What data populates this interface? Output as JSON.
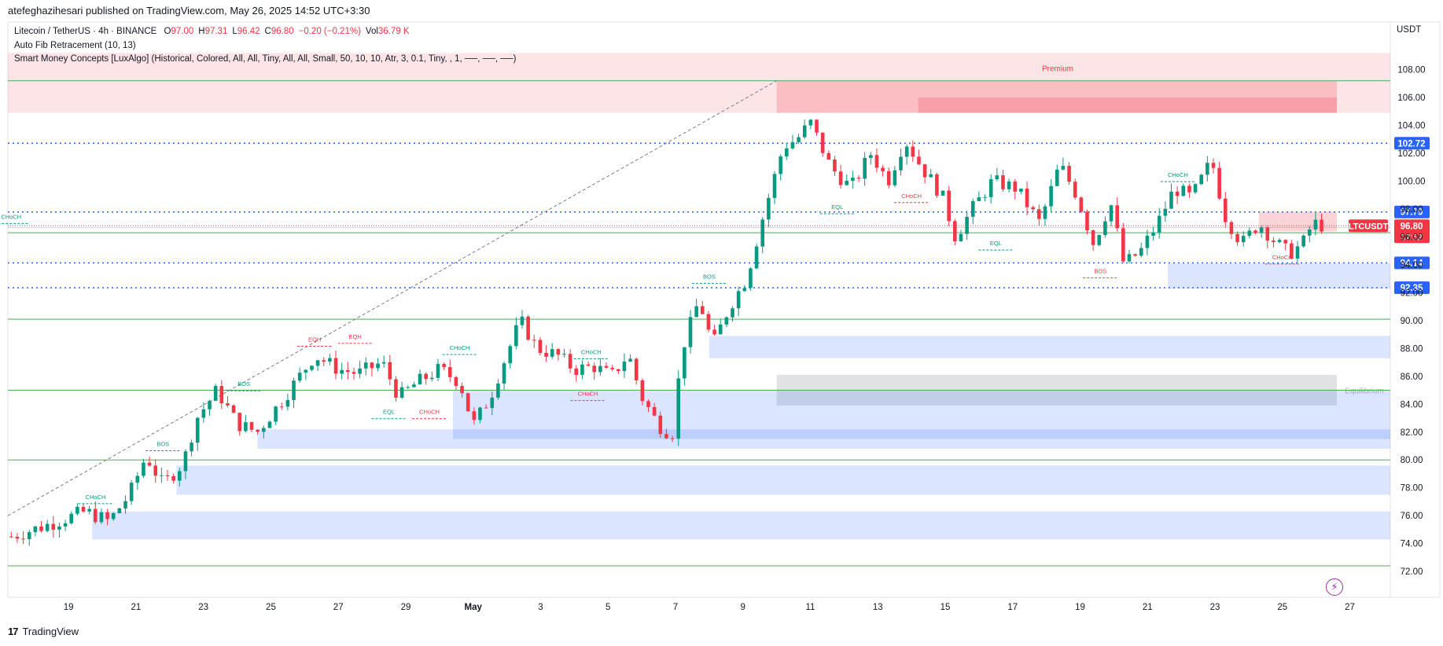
{
  "header": {
    "published_by": "atefeghazihesari published on TradingView.com, May 26, 2025 14:52 UTC+3:30"
  },
  "legend": {
    "symbol": "Litecoin / TetherUS · 4h · BINANCE",
    "ohlc": [
      {
        "k": "O",
        "v": "97.00"
      },
      {
        "k": "H",
        "v": "97.31"
      },
      {
        "k": "L",
        "v": "96.42"
      },
      {
        "k": "C",
        "v": "96.80"
      },
      {
        "k": "",
        "v": "−0.20 (−0.21%)"
      },
      {
        "k": "Vol",
        "v": "36.79 K"
      }
    ],
    "indicators": [
      "Auto Fib Retracement (10, 13)",
      "Smart Money Concepts [LuxAlgo] (Historical, Colored, All, All, Tiny, All, All, Small, 50, 10, 10, Atr, 3, 0.1, Tiny, , 1, ──, ──, ──)"
    ]
  },
  "axis": {
    "currency": "USDT"
  },
  "colors": {
    "up": "#089981",
    "down": "#f23645",
    "demand": "#2962ff",
    "supply": "#f23645",
    "level": "#2962ff",
    "fib": "#4caf50"
  },
  "footer": {
    "brand": "TradingView",
    "logo_icon": "tradingview-logo-icon"
  },
  "chart_data": {
    "type": "candlestick",
    "symbol": "LTCUSDT",
    "interval": "4h",
    "ylim": [
      71.5,
      109.5
    ],
    "y_ticks": [
      72,
      74,
      76,
      78,
      80,
      82,
      84,
      86,
      88,
      90,
      92,
      94,
      96,
      98,
      100,
      102,
      104,
      106,
      108
    ],
    "y_tick_labels": [
      "72.00",
      "74.00",
      "76.00",
      "78.00",
      "80.00",
      "82.00",
      "84.00",
      "86.00",
      "88.00",
      "90.00",
      "92.00",
      "94.00",
      "96.00",
      "98.00",
      "100.00",
      "102.00",
      "104.00",
      "106.00",
      "108.00"
    ],
    "x_ticks": [
      {
        "d": 19,
        "label": "19"
      },
      {
        "d": 21,
        "label": "21"
      },
      {
        "d": 23,
        "label": "23"
      },
      {
        "d": 25,
        "label": "25"
      },
      {
        "d": 27,
        "label": "27"
      },
      {
        "d": 29,
        "label": "29"
      },
      {
        "d": 31,
        "label": "May"
      },
      {
        "d": 33,
        "label": "3"
      },
      {
        "d": 35,
        "label": "5"
      },
      {
        "d": 37,
        "label": "7"
      },
      {
        "d": 39,
        "label": "9"
      },
      {
        "d": 41,
        "label": "11"
      },
      {
        "d": 43,
        "label": "13"
      },
      {
        "d": 45,
        "label": "15"
      },
      {
        "d": 47,
        "label": "17"
      },
      {
        "d": 49,
        "label": "19"
      },
      {
        "d": 51,
        "label": "21"
      },
      {
        "d": 53,
        "label": "23"
      },
      {
        "d": 55,
        "label": "25"
      },
      {
        "d": 57,
        "label": "27"
      }
    ],
    "x_range": [
      17.2,
      58.2
    ],
    "anchors": [
      {
        "d": 17.3,
        "p": 74.5
      },
      {
        "d": 18.2,
        "p": 75.2
      },
      {
        "d": 19.5,
        "p": 76.3
      },
      {
        "d": 20.2,
        "p": 75.6
      },
      {
        "d": 20.8,
        "p": 77.5
      },
      {
        "d": 21.3,
        "p": 80.3
      },
      {
        "d": 21.8,
        "p": 78.2
      },
      {
        "d": 22.4,
        "p": 79.8
      },
      {
        "d": 22.8,
        "p": 83.0
      },
      {
        "d": 23.4,
        "p": 85.0
      },
      {
        "d": 24.0,
        "p": 82.6
      },
      {
        "d": 24.6,
        "p": 82.0
      },
      {
        "d": 25.4,
        "p": 84.5
      },
      {
        "d": 26.3,
        "p": 87.5
      },
      {
        "d": 27.0,
        "p": 86.5
      },
      {
        "d": 27.6,
        "p": 86.2
      },
      {
        "d": 28.3,
        "p": 87.0
      },
      {
        "d": 28.8,
        "p": 84.5
      },
      {
        "d": 29.3,
        "p": 85.5
      },
      {
        "d": 30.0,
        "p": 86.5
      },
      {
        "d": 30.6,
        "p": 85.6
      },
      {
        "d": 31.0,
        "p": 82.5
      },
      {
        "d": 31.5,
        "p": 84.5
      },
      {
        "d": 31.9,
        "p": 87.0
      },
      {
        "d": 32.4,
        "p": 90.0
      },
      {
        "d": 32.9,
        "p": 88.0
      },
      {
        "d": 33.5,
        "p": 87.5
      },
      {
        "d": 34.0,
        "p": 86.5
      },
      {
        "d": 34.6,
        "p": 86.7
      },
      {
        "d": 35.1,
        "p": 86.0
      },
      {
        "d": 35.6,
        "p": 87.6
      },
      {
        "d": 36.0,
        "p": 84.5
      },
      {
        "d": 36.5,
        "p": 82.5
      },
      {
        "d": 36.9,
        "p": 81.8
      },
      {
        "d": 37.2,
        "p": 88.0
      },
      {
        "d": 37.7,
        "p": 91.5
      },
      {
        "d": 38.1,
        "p": 88.2
      },
      {
        "d": 38.6,
        "p": 91.0
      },
      {
        "d": 39.1,
        "p": 93.0
      },
      {
        "d": 39.6,
        "p": 97.5
      },
      {
        "d": 40.2,
        "p": 102.5
      },
      {
        "d": 40.6,
        "p": 103.0
      },
      {
        "d": 41.0,
        "p": 104.2
      },
      {
        "d": 41.6,
        "p": 101.0
      },
      {
        "d": 42.2,
        "p": 99.5
      },
      {
        "d": 42.8,
        "p": 102.0
      },
      {
        "d": 43.3,
        "p": 100.0
      },
      {
        "d": 43.8,
        "p": 103.0
      },
      {
        "d": 44.3,
        "p": 101.0
      },
      {
        "d": 44.9,
        "p": 99.0
      },
      {
        "d": 45.3,
        "p": 96.0
      },
      {
        "d": 45.8,
        "p": 98.0
      },
      {
        "d": 46.4,
        "p": 100.0
      },
      {
        "d": 47.1,
        "p": 99.5
      },
      {
        "d": 47.8,
        "p": 97.0
      },
      {
        "d": 48.4,
        "p": 101.2
      },
      {
        "d": 48.9,
        "p": 99.0
      },
      {
        "d": 49.4,
        "p": 95.5
      },
      {
        "d": 49.9,
        "p": 98.5
      },
      {
        "d": 50.3,
        "p": 94.0
      },
      {
        "d": 50.8,
        "p": 95.0
      },
      {
        "d": 51.3,
        "p": 97.0
      },
      {
        "d": 51.8,
        "p": 99.5
      },
      {
        "d": 52.3,
        "p": 98.8
      },
      {
        "d": 52.9,
        "p": 101.5
      },
      {
        "d": 53.3,
        "p": 97.5
      },
      {
        "d": 53.8,
        "p": 95.5
      },
      {
        "d": 54.3,
        "p": 97.0
      },
      {
        "d": 54.8,
        "p": 95.6
      },
      {
        "d": 55.2,
        "p": 94.8
      },
      {
        "d": 55.6,
        "p": 95.5
      },
      {
        "d": 55.9,
        "p": 97.0
      },
      {
        "d": 56.2,
        "p": 96.8
      }
    ],
    "price_levels": [
      {
        "price": 102.72,
        "label": "102.72"
      },
      {
        "price": 97.79,
        "label": "97.79"
      },
      {
        "price": 94.14,
        "label": "94.14"
      },
      {
        "price": 92.35,
        "label": "92.35"
      }
    ],
    "last_price": {
      "symbol_label": "LTCUSDT",
      "price": 96.8,
      "label": "96.80",
      "countdown": "37:52"
    },
    "fib_levels": [
      107.2,
      96.3,
      90.1,
      85.0,
      80.0,
      72.4
    ],
    "fib_line": {
      "from": {
        "d": 17.2,
        "p": 76.0
      },
      "to": {
        "d": 40.0,
        "p": 107.2
      }
    },
    "premium_zone": {
      "from": 109.2,
      "to": 104.9,
      "label": "Premium"
    },
    "equilibrium_zone": {
      "d_from": 40.0,
      "from": 86.1,
      "to": 83.9,
      "label": "Equilibrium"
    },
    "supply_zones": [
      {
        "d_from": 40.0,
        "p_top": 107.2,
        "p_bot": 104.9
      },
      {
        "d_from": 44.2,
        "p_top": 106.0,
        "p_bot": 104.9
      },
      {
        "d_from": 54.3,
        "p_top": 97.8,
        "p_bot": 96.4
      }
    ],
    "demand_zones": [
      {
        "d_from": 51.6,
        "p_top": 94.1,
        "p_bot": 92.3
      },
      {
        "d_from": 38.0,
        "p_top": 88.9,
        "p_bot": 87.3
      },
      {
        "d_from": 24.6,
        "p_top": 82.2,
        "p_bot": 80.8
      },
      {
        "d_from": 30.4,
        "p_top": 85.0,
        "p_bot": 81.5
      },
      {
        "d_from": 22.2,
        "p_top": 79.6,
        "p_bot": 77.5
      },
      {
        "d_from": 19.7,
        "p_top": 76.3,
        "p_bot": 74.3
      }
    ],
    "structure_labels": [
      {
        "d": 19.8,
        "p": 77.2,
        "text": "CHoCH",
        "color": "#089981"
      },
      {
        "d": 21.8,
        "p": 81.0,
        "text": "BOS",
        "color": "#089981"
      },
      {
        "d": 24.2,
        "p": 85.3,
        "text": "BOS",
        "color": "#089981"
      },
      {
        "d": 26.3,
        "p": 88.5,
        "text": "EQH",
        "color": "#f23645"
      },
      {
        "d": 27.5,
        "p": 88.7,
        "text": "EQH",
        "color": "#f23645"
      },
      {
        "d": 28.5,
        "p": 83.3,
        "text": "EQL",
        "color": "#089981"
      },
      {
        "d": 29.7,
        "p": 83.3,
        "text": "CHoCH",
        "color": "#f23645"
      },
      {
        "d": 30.6,
        "p": 87.9,
        "text": "CHoCH",
        "color": "#089981"
      },
      {
        "d": 34.5,
        "p": 87.6,
        "text": "CHoCH",
        "color": "#089981"
      },
      {
        "d": 34.4,
        "p": 84.6,
        "text": "CHoCH",
        "color": "#f23645"
      },
      {
        "d": 38.0,
        "p": 93.0,
        "text": "BOS",
        "color": "#089981"
      },
      {
        "d": 41.8,
        "p": 98.0,
        "text": "EQL",
        "color": "#089981"
      },
      {
        "d": 44.0,
        "p": 98.8,
        "text": "CHoCH",
        "color": "#f23645"
      },
      {
        "d": 46.5,
        "p": 95.4,
        "text": "EQL",
        "color": "#089981"
      },
      {
        "d": 49.6,
        "p": 93.4,
        "text": "BOS",
        "color": "#f23645"
      },
      {
        "d": 51.9,
        "p": 100.3,
        "text": "CHoCH",
        "color": "#089981"
      },
      {
        "d": 55.0,
        "p": 94.4,
        "text": "CHoCH",
        "color": "#f23645"
      },
      {
        "d": 17.3,
        "p": 97.3,
        "text": "CHoCH",
        "color": "#089981"
      }
    ]
  }
}
